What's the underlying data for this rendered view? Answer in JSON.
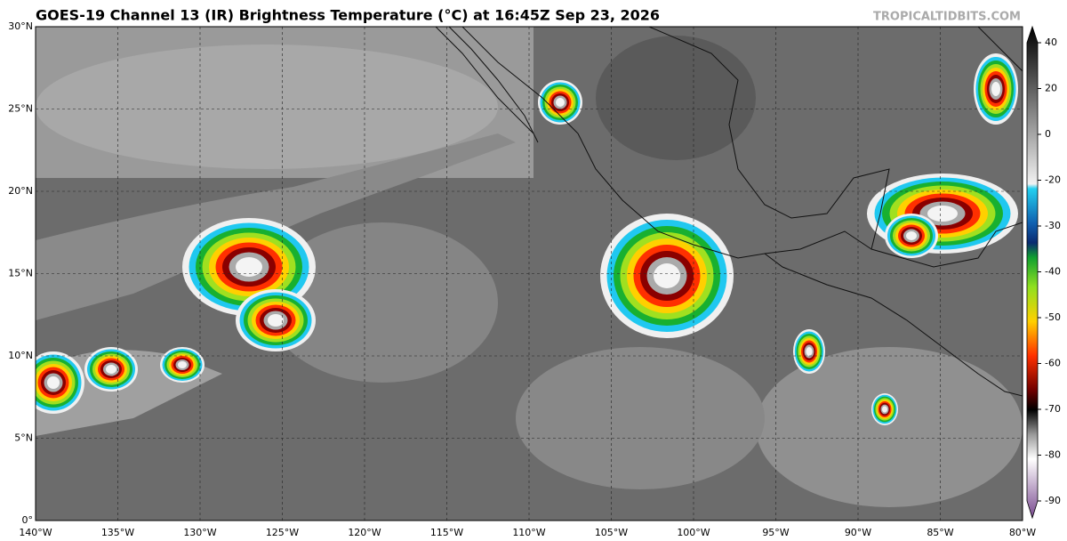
{
  "header": {
    "title": "GOES-19 Channel 13 (IR) Brightness Temperature (°C) at 16:45Z Sep 23, 2026",
    "credit": "TROPICALTIDBITS.COM"
  },
  "map": {
    "lat_labels": [
      "30°N",
      "25°N",
      "20°N",
      "15°N",
      "10°N",
      "5°N",
      "0°"
    ],
    "lon_labels": [
      "140°W",
      "135°W",
      "130°W",
      "125°W",
      "120°W",
      "115°W",
      "110°W",
      "105°W",
      "100°W",
      "95°W",
      "90°W",
      "85°W",
      "80°W"
    ]
  },
  "colorbar": {
    "ticks": [
      40,
      20,
      0,
      -20,
      -30,
      -40,
      -50,
      -60,
      -70,
      -80,
      -90
    ]
  }
}
